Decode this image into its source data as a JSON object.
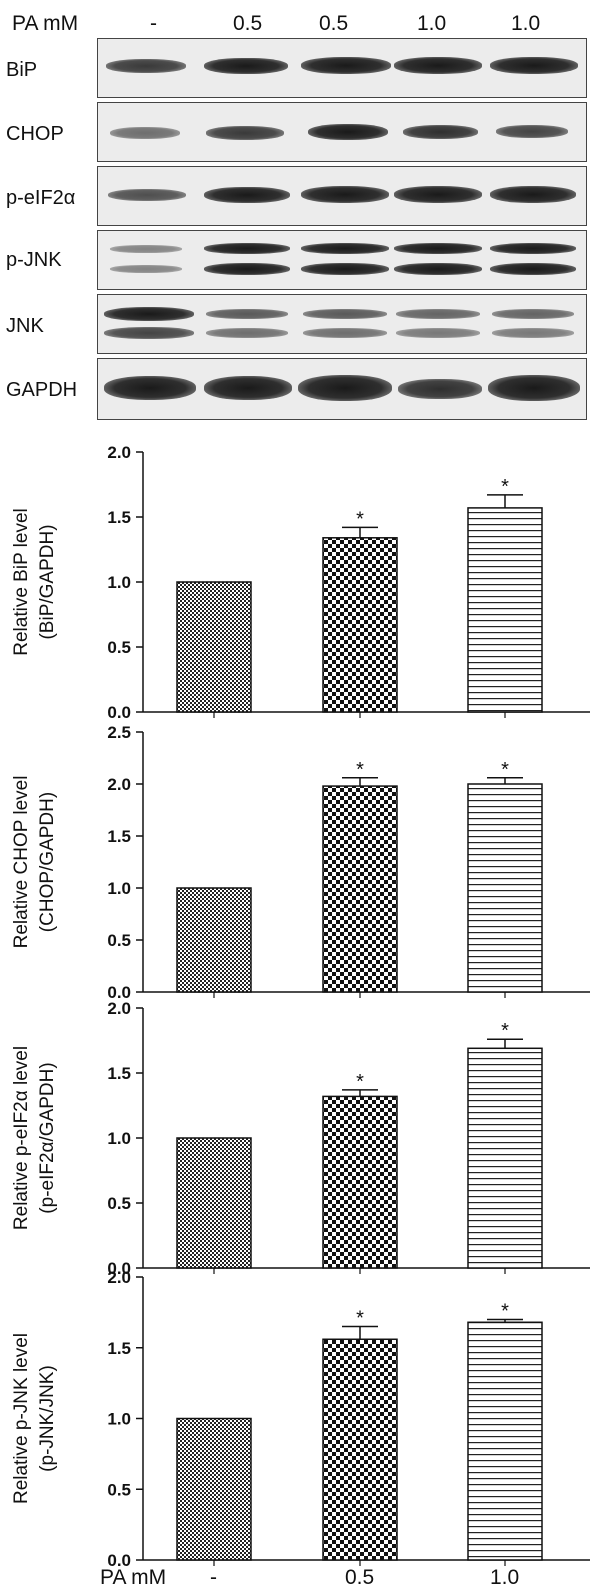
{
  "header": {
    "pa_label": "PA mM",
    "lanes": [
      "-",
      "0.5",
      "0.5",
      "1.0",
      "1.0"
    ]
  },
  "blots": [
    {
      "label": "BiP"
    },
    {
      "label": "CHOP"
    },
    {
      "label": "p-eIF2α"
    },
    {
      "label": "p-JNK"
    },
    {
      "label": "JNK"
    },
    {
      "label": "GAPDH"
    }
  ],
  "bottom_axis": {
    "pa_label": "PA mM",
    "groups": [
      "-",
      "0.5",
      "1.0"
    ]
  },
  "chart_data": [
    {
      "type": "bar",
      "categories": [
        "-",
        "0.5",
        "1.0"
      ],
      "values": [
        1.0,
        1.34,
        1.57
      ],
      "errors": [
        0,
        0.08,
        0.1
      ],
      "significance": [
        "",
        "*",
        "*"
      ],
      "ylabel": "Relative BiP level",
      "ylabel2": "(BiP/GAPDH)",
      "ylim": [
        0,
        2.0
      ],
      "yticks": [
        "0.0",
        "0.5",
        "1.0",
        "1.5",
        "2.0"
      ],
      "patterns": [
        "fine-checker",
        "checker",
        "horizontal-lines"
      ]
    },
    {
      "type": "bar",
      "categories": [
        "-",
        "0.5",
        "1.0"
      ],
      "values": [
        1.0,
        1.98,
        2.0
      ],
      "errors": [
        0,
        0.08,
        0.06
      ],
      "significance": [
        "",
        "*",
        "*"
      ],
      "ylabel": "Relative CHOP level",
      "ylabel2": "(CHOP/GAPDH)",
      "ylim": [
        0,
        2.5
      ],
      "yticks": [
        "0.0",
        "0.5",
        "1.0",
        "1.5",
        "2.0",
        "2.5"
      ],
      "patterns": [
        "fine-checker",
        "checker",
        "horizontal-lines"
      ]
    },
    {
      "type": "bar",
      "categories": [
        "-",
        "0.5",
        "1.0"
      ],
      "values": [
        1.0,
        1.32,
        1.69
      ],
      "errors": [
        0,
        0.05,
        0.07
      ],
      "significance": [
        "",
        "*",
        "*"
      ],
      "ylabel": "Relative p-eIF2α level",
      "ylabel2": "(p-eIF2α/GAPDH)",
      "ylim": [
        0,
        2.0
      ],
      "yticks": [
        "0.0",
        "0.5",
        "1.0",
        "1.5",
        "2.0"
      ],
      "patterns": [
        "fine-checker",
        "checker",
        "horizontal-lines"
      ]
    },
    {
      "type": "bar",
      "categories": [
        "-",
        "0.5",
        "1.0"
      ],
      "values": [
        1.0,
        1.56,
        1.68
      ],
      "errors": [
        0,
        0.09,
        0.02
      ],
      "significance": [
        "",
        "*",
        "*"
      ],
      "ylabel": "Relative p-JNK level",
      "ylabel2": "(p-JNK/JNK)",
      "ylim": [
        0,
        2.0
      ],
      "yticks": [
        "0.0",
        "0.5",
        "1.0",
        "1.5",
        "2.0"
      ],
      "patterns": [
        "fine-checker",
        "checker",
        "horizontal-lines"
      ]
    }
  ]
}
